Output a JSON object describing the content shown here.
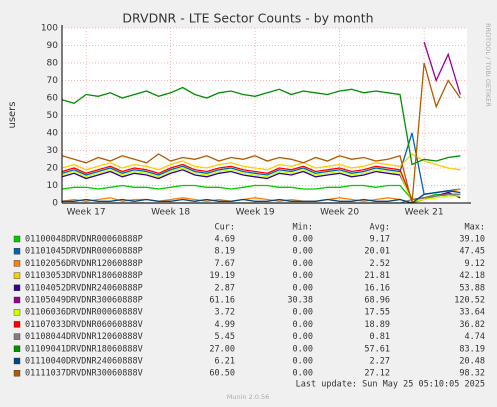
{
  "chart_data": {
    "type": "line",
    "title": "DRVDNR - LTE Sector Counts - by month",
    "y_label": "users",
    "side_label": "RRDTOOL / TOBI OETIKER",
    "categories": [
      null,
      null,
      "Week 17",
      null,
      null,
      null,
      null,
      null,
      null,
      "Week 18",
      null,
      null,
      null,
      null,
      null,
      null,
      "Week 19",
      null,
      null,
      null,
      null,
      null,
      null,
      "Week 20",
      null,
      null,
      null,
      null,
      null,
      null,
      "Week 21",
      null,
      null,
      null
    ],
    "ylim": [
      0,
      100
    ],
    "yticks": [
      0,
      10,
      20,
      30,
      40,
      50,
      60,
      70,
      80,
      90,
      100
    ],
    "grid": true,
    "legend_headers": [
      "Cur:",
      "Min:",
      "Avg:",
      "Max:"
    ],
    "series": [
      {
        "name": "01100048DRVDNR00060888P",
        "color": "#00cc00",
        "stats": [
          "4.69",
          "0.00",
          "9.17",
          "39.10"
        ],
        "values": [
          8,
          9,
          9,
          8,
          9,
          10,
          9,
          9,
          8,
          9,
          10,
          10,
          9,
          9,
          8,
          9,
          10,
          10,
          9,
          9,
          8,
          8,
          9,
          9,
          10,
          10,
          9,
          10,
          10,
          2,
          3,
          5,
          4,
          5
        ]
      },
      {
        "name": "01101045DRVDNR00060888P",
        "color": "#0066b3",
        "stats": [
          "8.19",
          "0.00",
          "20.01",
          "47.45"
        ],
        "values": [
          17,
          19,
          16,
          18,
          20,
          17,
          19,
          18,
          16,
          19,
          21,
          18,
          17,
          19,
          20,
          18,
          17,
          16,
          19,
          18,
          20,
          17,
          18,
          19,
          17,
          18,
          20,
          19,
          18,
          40,
          5,
          6,
          7,
          8
        ]
      },
      {
        "name": "01102056DRVDNR12060888P",
        "color": "#ff8000",
        "stats": [
          "7.67",
          "0.00",
          "2.52",
          "9.12"
        ],
        "values": [
          1,
          2,
          1,
          2,
          3,
          1,
          2,
          2,
          1,
          2,
          3,
          2,
          1,
          2,
          1,
          2,
          3,
          2,
          1,
          2,
          1,
          1,
          2,
          3,
          2,
          1,
          2,
          3,
          2,
          0,
          2,
          4,
          6,
          8
        ]
      },
      {
        "name": "01103053DRVDNR18060888P",
        "color": "#ffcc00",
        "stats": [
          "19.19",
          "0.00",
          "21.81",
          "42.18"
        ],
        "values": [
          20,
          22,
          19,
          21,
          23,
          20,
          22,
          21,
          19,
          22,
          24,
          21,
          20,
          22,
          23,
          21,
          20,
          19,
          22,
          21,
          23,
          20,
          21,
          22,
          20,
          21,
          23,
          22,
          21,
          28,
          24,
          22,
          20,
          19
        ]
      },
      {
        "name": "01104052DRVDNR24060888P",
        "color": "#330099",
        "stats": [
          "2.87",
          "0.00",
          "16.16",
          "53.88"
        ],
        "values": [
          15,
          17,
          14,
          16,
          18,
          15,
          17,
          16,
          14,
          17,
          19,
          16,
          15,
          17,
          18,
          16,
          15,
          14,
          17,
          16,
          18,
          15,
          16,
          17,
          15,
          16,
          18,
          17,
          16,
          2,
          3,
          4,
          6,
          3
        ]
      },
      {
        "name": "01105049DRVDNR30060888P",
        "color": "#990099",
        "stats": [
          "61.16",
          "30.38",
          "68.96",
          "120.52"
        ],
        "values": [
          null,
          null,
          null,
          null,
          null,
          null,
          null,
          null,
          null,
          null,
          null,
          null,
          null,
          null,
          null,
          null,
          null,
          null,
          null,
          null,
          null,
          null,
          null,
          null,
          null,
          null,
          null,
          null,
          null,
          null,
          92,
          70,
          85,
          62
        ]
      },
      {
        "name": "01106036DRVDNR00060888V",
        "color": "#ccff00",
        "stats": [
          "3.72",
          "0.00",
          "17.55",
          "33.64"
        ],
        "values": [
          16,
          18,
          15,
          17,
          19,
          16,
          18,
          17,
          15,
          18,
          20,
          17,
          16,
          18,
          19,
          17,
          16,
          15,
          18,
          17,
          19,
          16,
          17,
          18,
          16,
          17,
          19,
          18,
          17,
          1,
          2,
          3,
          4,
          4
        ]
      },
      {
        "name": "01107033DRVDNR06060888V",
        "color": "#ff0000",
        "stats": [
          "4.99",
          "0.00",
          "18.89",
          "36.82"
        ],
        "values": [
          18,
          20,
          17,
          19,
          21,
          18,
          20,
          19,
          17,
          20,
          22,
          19,
          18,
          20,
          21,
          19,
          18,
          17,
          20,
          19,
          21,
          18,
          19,
          20,
          18,
          19,
          21,
          20,
          19,
          2,
          3,
          4,
          5,
          5
        ]
      },
      {
        "name": "01108044DRVDNR12060888V",
        "color": "#808080",
        "stats": [
          "5.45",
          "0.00",
          "0.81",
          "4.74"
        ],
        "values": [
          0,
          0,
          0,
          0,
          0,
          0,
          0,
          0,
          0,
          0,
          0,
          0,
          0,
          0,
          0,
          0,
          0,
          0,
          0,
          0,
          0,
          0,
          0,
          0,
          0,
          0,
          0,
          0,
          0,
          2,
          3,
          4,
          5,
          5
        ]
      },
      {
        "name": "01109041DRVDNR18060888V",
        "color": "#008f00",
        "stats": [
          "27.00",
          "0.00",
          "57.61",
          "83.19"
        ],
        "values": [
          59,
          57,
          62,
          61,
          63,
          60,
          62,
          64,
          61,
          63,
          66,
          62,
          60,
          63,
          64,
          62,
          61,
          63,
          65,
          62,
          64,
          63,
          62,
          64,
          65,
          63,
          64,
          63,
          62,
          22,
          25,
          24,
          26,
          27
        ]
      },
      {
        "name": "01110040DRVDNR24060888V",
        "color": "#00487d",
        "stats": [
          "6.21",
          "0.00",
          "2.27",
          "20.48"
        ],
        "values": [
          1,
          1,
          2,
          1,
          1,
          2,
          1,
          2,
          1,
          1,
          2,
          1,
          2,
          1,
          1,
          2,
          1,
          1,
          2,
          1,
          1,
          1,
          2,
          1,
          1,
          2,
          1,
          1,
          2,
          0,
          5,
          6,
          7,
          6
        ]
      },
      {
        "name": "01111037DRVDNR30060888V",
        "color": "#b35a00",
        "stats": [
          "60.50",
          "0.00",
          "27.12",
          "98.32"
        ],
        "values": [
          27,
          25,
          23,
          26,
          24,
          27,
          25,
          23,
          28,
          24,
          26,
          25,
          27,
          24,
          26,
          25,
          27,
          24,
          26,
          25,
          23,
          26,
          24,
          27,
          25,
          26,
          24,
          25,
          27,
          0,
          80,
          55,
          70,
          60
        ]
      }
    ],
    "last_update": "Last update: Sun May 25 05:10:05 2025",
    "footer": "Munin 2.0.56"
  }
}
